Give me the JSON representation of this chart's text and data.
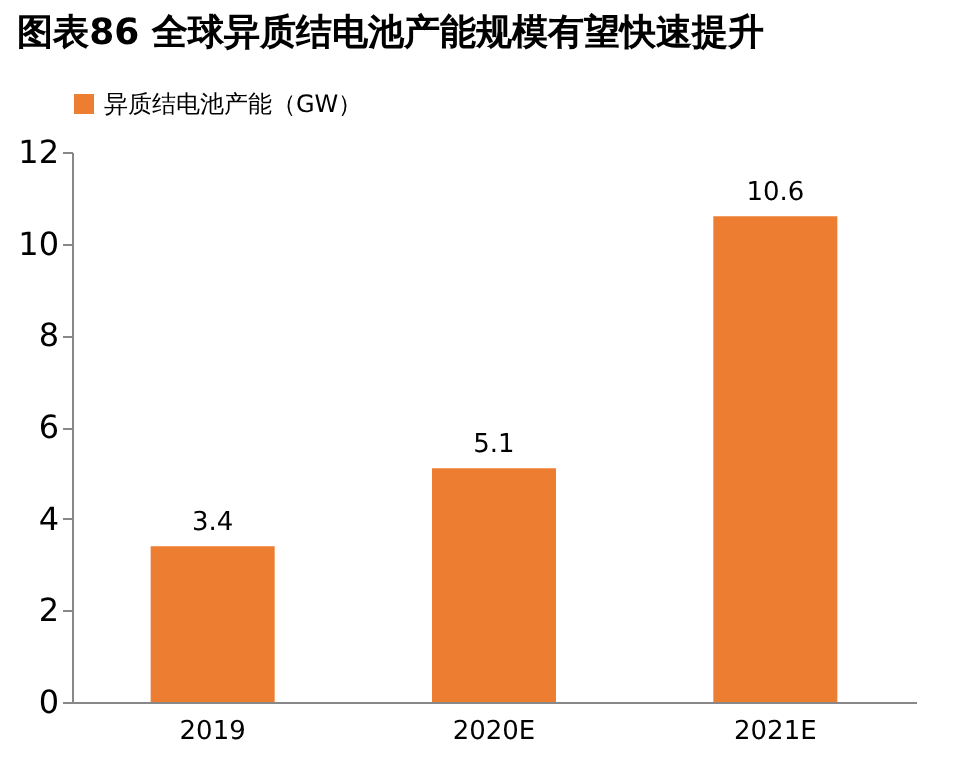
{
  "chart_data": {
    "type": "bar",
    "title": "图表86    全球异质结电池产能规模有望快速提升",
    "categories": [
      "2019",
      "2020E",
      "2021E"
    ],
    "series": [
      {
        "name": "异质结电池产能（GW）",
        "color": "#ed7d31",
        "values": [
          3.4,
          5.1,
          10.6
        ]
      }
    ],
    "ylim": [
      0,
      12
    ],
    "yticks": [
      0,
      2,
      4,
      6,
      8,
      10,
      12
    ],
    "grid": false,
    "legend": "top",
    "data_labels": true
  }
}
